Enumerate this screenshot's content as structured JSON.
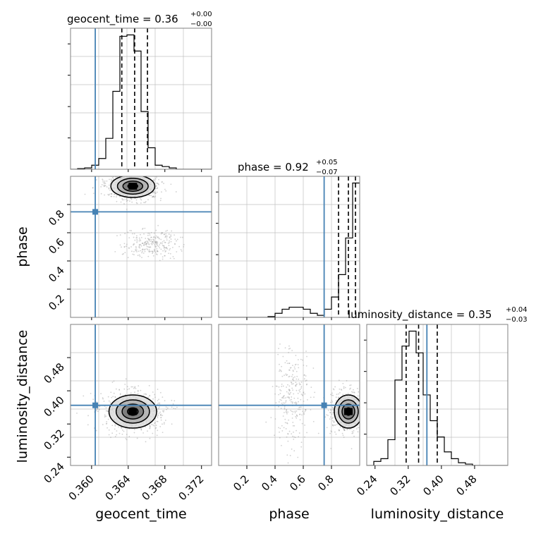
{
  "colors": {
    "truth": "#4682b4",
    "hist": "#000000",
    "grid": "#c0c0c0",
    "points": "#9a9a9a"
  },
  "chart_data": {
    "type": "corner",
    "parameters": [
      "geocent_time",
      "phase",
      "luminosity_distance"
    ],
    "titles": [
      {
        "name": "geocent_time",
        "median": "0.36",
        "plus": "+0.00",
        "minus": "−0.00"
      },
      {
        "name": "phase",
        "median": "0.92",
        "plus": "+0.05",
        "minus": "−0.07"
      },
      {
        "name": "luminosity_distance",
        "median": "0.35",
        "plus": "+0.04",
        "minus": "−0.03"
      }
    ],
    "ranges": {
      "geocent_time": [
        0.3577,
        0.3731
      ],
      "phase": [
        0.0,
        1.0
      ],
      "luminosity_distance": [
        0.22,
        0.56
      ]
    },
    "ticks": {
      "geocent_time": [
        "0.360",
        "0.364",
        "0.368",
        "0.372"
      ],
      "phase": [
        "0.2",
        "0.4",
        "0.6",
        "0.8"
      ],
      "luminosity_distance": [
        "0.24",
        "0.32",
        "0.40",
        "0.48"
      ]
    },
    "truth": {
      "geocent_time": 0.3604,
      "phase": 0.748,
      "luminosity_distance": 0.365
    },
    "quantiles": {
      "geocent_time": [
        0.3633,
        0.3647,
        0.3661
      ],
      "phase": [
        0.85,
        0.92,
        0.97
      ],
      "luminosity_distance": [
        0.315,
        0.345,
        0.39
      ]
    },
    "histograms": {
      "geocent_time": {
        "edges_start": 0.3577,
        "bin_width": 0.00077,
        "counts": [
          0,
          0.005,
          0.01,
          0.03,
          0.08,
          0.23,
          0.58,
          0.99,
          1.0,
          0.88,
          0.43,
          0.16,
          0.03,
          0.02,
          0.01,
          0.0,
          0.0,
          0.0,
          0.0,
          0.0
        ]
      },
      "phase": {
        "edges_start": 0.0,
        "bin_width": 0.05,
        "counts": [
          0,
          0,
          0,
          0,
          0,
          0,
          0,
          0.004,
          0.02,
          0.04,
          0.05,
          0.05,
          0.04,
          0.02,
          0.01,
          0.04,
          0.1,
          0.21,
          0.39,
          0.66
        ]
      },
      "luminosity_distance": {
        "edges_start": 0.22,
        "bin_width": 0.017,
        "counts": [
          0,
          0.03,
          0.05,
          0.19,
          0.63,
          0.88,
          0.99,
          0.83,
          0.52,
          0.33,
          0.21,
          0.1,
          0.05,
          0.02,
          0.01,
          0,
          0,
          0,
          0,
          0
        ]
      }
    },
    "clusters": [
      {
        "pair": [
          "geocent_time",
          "phase"
        ],
        "center": [
          0.3645,
          0.93
        ],
        "sd": [
          0.0012,
          0.04
        ]
      },
      {
        "pair": [
          "geocent_time",
          "phase"
        ],
        "center": [
          0.3665,
          0.52
        ],
        "sd": [
          0.0012,
          0.04
        ]
      },
      {
        "pair": [
          "geocent_time",
          "luminosity_distance"
        ],
        "center": [
          0.3645,
          0.35
        ],
        "sd": [
          0.0013,
          0.02
        ]
      },
      {
        "pair": [
          "phase",
          "luminosity_distance"
        ],
        "center": [
          0.92,
          0.35
        ],
        "sd": [
          0.05,
          0.02
        ]
      },
      {
        "pair": [
          "phase",
          "luminosity_distance"
        ],
        "center": [
          0.52,
          0.38
        ],
        "sd": [
          0.05,
          0.05
        ]
      }
    ],
    "grid": true
  }
}
